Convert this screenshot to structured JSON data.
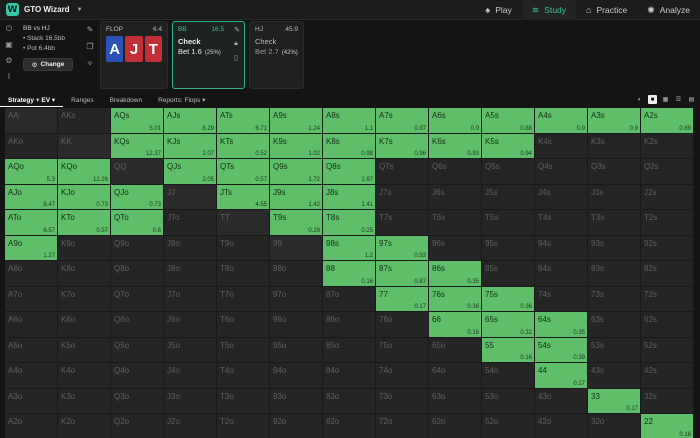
{
  "app": {
    "brand": "GTO Wizard"
  },
  "nav": [
    {
      "label": "Play",
      "icon": "♠"
    },
    {
      "label": "Study",
      "icon": "≋"
    },
    {
      "label": "Practice",
      "icon": "⌂"
    },
    {
      "label": "Analyze",
      "icon": "✺"
    }
  ],
  "spot": {
    "title": "BB vs HJ",
    "stack": "• Stack 16.5bb",
    "pot": "• Pot 6.4bb",
    "change": "Change"
  },
  "flop": {
    "label": "FLOP",
    "pot": "6.4",
    "cards": [
      "A",
      "J",
      "T"
    ]
  },
  "bb": {
    "pos": "BB",
    "stack": "16.5",
    "check": "Check",
    "bet": "Bet 1.6",
    "bet_pct": "(25%)"
  },
  "hj": {
    "pos": "HJ",
    "stack": "45.9",
    "check": "Check",
    "bet": "Bet 2.7",
    "bet_pct": "(42%)"
  },
  "tabs": [
    "Strategy + EV ▾",
    "Ranges",
    "Breakdown",
    "Reports: Flops ▾"
  ],
  "ranks": [
    "A",
    "K",
    "Q",
    "J",
    "T",
    "9",
    "8",
    "7",
    "6",
    "5",
    "4",
    "3",
    "2"
  ],
  "hands": {
    "AQs": "5.01",
    "AJs": "8.29",
    "ATs": "6.71",
    "A9s": "1.24",
    "A8s": "1.1",
    "A7s": "0.97",
    "A6s": "0.9",
    "A5s": "0.88",
    "A4s": "0.9",
    "A3s": "0.9",
    "A2s": "0.89",
    "KQs": "12.37",
    "KJs": "2.07",
    "KTs": "0.52",
    "K9s": "1.02",
    "K8s": "0.98",
    "K7s": "0.96",
    "K6s": "0.93",
    "K5s": "0.94",
    "AQo": "5.3",
    "KQo": "12.26",
    "QJs": "2.05",
    "QTs": "0.57",
    "Q9s": "1.72",
    "Q8s": "1.67",
    "AJo": "8.47",
    "KJo": "0.73",
    "QJo": "0.73",
    "JTs": "4.55",
    "J9s": "1.42",
    "J8s": "1.41",
    "ATo": "6.57",
    "KTo": "0.57",
    "QTo": "0.6",
    "T9s": "0.29",
    "T8s": "0.25",
    "A9o": "1.27",
    "98s": "1.2",
    "97s": "0.93",
    "88": "0.16",
    "87s": "0.87",
    "86s": "0.35",
    "77": "0.17",
    "76s": "0.36",
    "75s": "0.36",
    "66": "0.16",
    "65s": "0.32",
    "64s": "0.35",
    "55": "0.16",
    "54s": "0.39",
    "44": "0.17",
    "33": "0.17",
    "22": "0.16"
  }
}
